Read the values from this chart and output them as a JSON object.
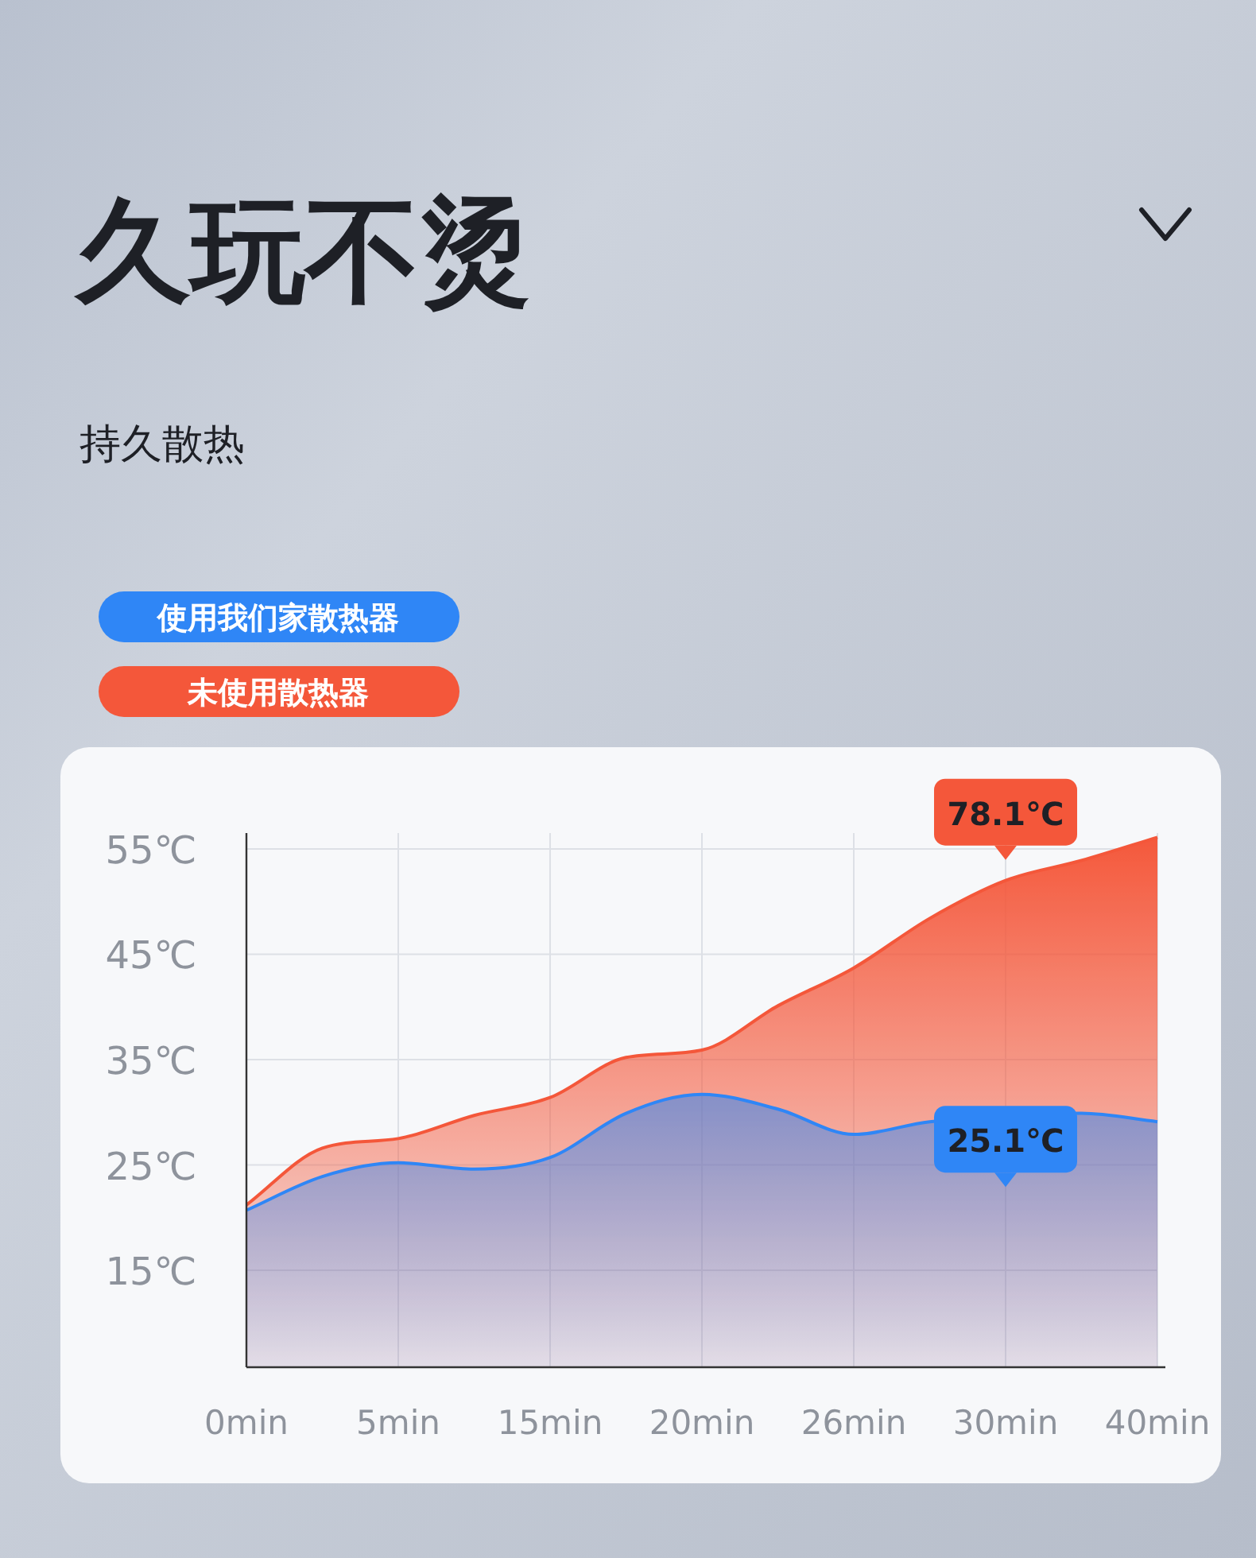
{
  "chart_data": {
    "type": "area",
    "title": "久玩不烫",
    "subtitle": "持久散热",
    "categories": [
      "0min",
      null,
      "5min",
      null,
      "15min",
      null,
      "20min",
      null,
      "26min",
      null,
      "30min",
      null,
      "40min"
    ],
    "series": [
      {
        "name": "未使用散热器",
        "color": "#f4573a",
        "values": [
          21.2,
          26.6,
          27.5,
          29.7,
          31.4,
          35.2,
          35.9,
          40.1,
          43.7,
          48.4,
          52.0,
          53.9,
          56.1
        ]
      },
      {
        "name": "使用我们家散热器",
        "color": "#2f86f6",
        "values": [
          20.7,
          23.9,
          25.2,
          24.6,
          25.7,
          29.9,
          31.7,
          30.3,
          27.9,
          29.1,
          null,
          29.9,
          29.1
        ]
      }
    ],
    "ylim": [
      5.8,
      56.5
    ],
    "yticks": [
      {
        "value": 15,
        "label": "15℃"
      },
      {
        "value": 25,
        "label": "25℃"
      },
      {
        "value": 35,
        "label": "35℃"
      },
      {
        "value": 45,
        "label": "45℃"
      },
      {
        "value": 55,
        "label": "55℃"
      }
    ],
    "grid": true,
    "legend": "top left",
    "marker": "none",
    "annotations": [
      "78.1℃",
      "25.1℃"
    ]
  }
}
